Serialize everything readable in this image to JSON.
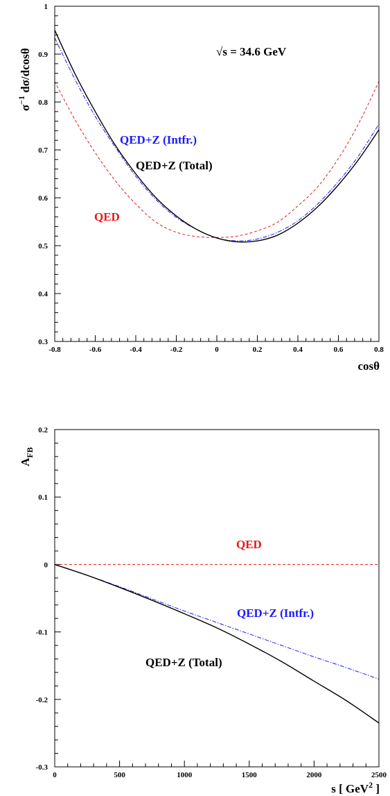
{
  "chart_data": [
    {
      "type": "line",
      "annotation_energy": "√s = 34.6 GeV",
      "xlabel": "cosθ",
      "ylabel_main": "σ",
      "ylabel_sup": "−1",
      "ylabel_rest": " dσ/dcosθ",
      "xlim": [
        -0.8,
        0.8
      ],
      "ylim": [
        0.3,
        1.0
      ],
      "xticks": [
        "-0.8",
        "-0.6",
        "-0.4",
        "-0.2",
        "0",
        "0.2",
        "0.4",
        "0.6",
        "0.8"
      ],
      "yticks": [
        "0.3",
        "0.4",
        "0.5",
        "0.6",
        "0.7",
        "0.8",
        "0.9",
        "1"
      ],
      "x": [
        -0.8,
        -0.7,
        -0.6,
        -0.5,
        -0.4,
        -0.3,
        -0.2,
        -0.1,
        0.0,
        0.1,
        0.2,
        0.3,
        0.4,
        0.5,
        0.6,
        0.7,
        0.8
      ],
      "series": [
        {
          "name": "QED",
          "color": "#e41a1c",
          "dash": "dashed",
          "values": [
            0.843,
            0.763,
            0.694,
            0.635,
            0.587,
            0.549,
            0.528,
            0.519,
            0.517,
            0.52,
            0.531,
            0.549,
            0.583,
            0.624,
            0.682,
            0.755,
            0.843
          ]
        },
        {
          "name": "QED+Z (Intfr.)",
          "color": "#1a1aff",
          "dash": "dashdot",
          "values": [
            0.934,
            0.847,
            0.77,
            0.705,
            0.645,
            0.596,
            0.559,
            0.534,
            0.516,
            0.51,
            0.514,
            0.528,
            0.552,
            0.588,
            0.634,
            0.688,
            0.754
          ]
        },
        {
          "name": "QED+Z (Total)",
          "color": "#000000",
          "dash": "solid",
          "values": [
            0.95,
            0.859,
            0.78,
            0.709,
            0.65,
            0.6,
            0.562,
            0.534,
            0.516,
            0.508,
            0.51,
            0.522,
            0.547,
            0.582,
            0.627,
            0.68,
            0.742
          ]
        }
      ]
    },
    {
      "type": "line",
      "xlabel_main": "s [ GeV",
      "xlabel_sup": "2",
      "xlabel_end": " ]",
      "ylabel_main": "A",
      "ylabel_sub": "FB",
      "xlim": [
        0,
        2500
      ],
      "ylim": [
        -0.3,
        0.2
      ],
      "xticks": [
        "0",
        "500",
        "1000",
        "1500",
        "2000",
        "2500"
      ],
      "yticks": [
        "-0.3",
        "-0.2",
        "-0.1",
        "0",
        "0.1",
        "0.2"
      ],
      "x": [
        0,
        250,
        500,
        750,
        1000,
        1250,
        1500,
        1750,
        2000,
        2250,
        2500
      ],
      "series": [
        {
          "name": "QED",
          "color": "#e41a1c",
          "dash": "dashed",
          "values": [
            0,
            0,
            0,
            0,
            0,
            0,
            0,
            0,
            0,
            0,
            0
          ]
        },
        {
          "name": "QED+Z (Intfr.)",
          "color": "#1a1aff",
          "dash": "dashdot",
          "values": [
            0.0,
            -0.016,
            -0.033,
            -0.051,
            -0.069,
            -0.086,
            -0.103,
            -0.12,
            -0.137,
            -0.153,
            -0.17
          ]
        },
        {
          "name": "QED+Z (Total)",
          "color": "#000000",
          "dash": "solid",
          "values": [
            0.0,
            -0.016,
            -0.034,
            -0.053,
            -0.073,
            -0.094,
            -0.118,
            -0.144,
            -0.173,
            -0.202,
            -0.235
          ]
        }
      ]
    }
  ]
}
